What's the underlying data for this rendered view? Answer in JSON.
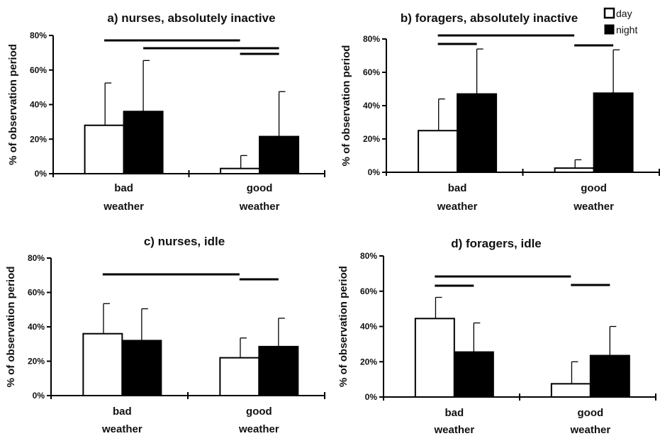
{
  "legend": [
    {
      "label": "day",
      "color": "#ffffff"
    },
    {
      "label": "night",
      "color": "#000000"
    }
  ],
  "chart_data": [
    {
      "type": "bar",
      "title": "a) nurses, absolutely inactive",
      "ylabel": "% of observation period",
      "ylim": [
        0,
        80
      ],
      "yticks": [
        "0%",
        "20%",
        "40%",
        "60%",
        "80%"
      ],
      "categories": [
        [
          "bad",
          "weather"
        ],
        [
          "good",
          "weather"
        ]
      ],
      "series": [
        {
          "name": "day",
          "values": [
            28,
            3
          ],
          "errors": [
            24.5,
            7.5
          ]
        },
        {
          "name": "night",
          "values": [
            36,
            21.5
          ],
          "errors": [
            29.5,
            26
          ]
        }
      ],
      "significance": [
        {
          "from": [
            0,
            0
          ],
          "to": [
            1,
            0
          ]
        },
        {
          "from": [
            0,
            1
          ],
          "to": [
            1,
            1
          ]
        },
        {
          "from": [
            1,
            0
          ],
          "to": [
            1,
            1
          ]
        }
      ]
    },
    {
      "type": "bar",
      "title": "b) foragers, absolutely inactive",
      "ylabel": "% of observation period",
      "ylim": [
        0,
        80
      ],
      "yticks": [
        "0%",
        "20%",
        "40%",
        "60%",
        "80%"
      ],
      "categories": [
        [
          "bad",
          "weather"
        ],
        [
          "good",
          "weather"
        ]
      ],
      "series": [
        {
          "name": "day",
          "values": [
            25,
            2.5
          ],
          "errors": [
            19,
            5
          ]
        },
        {
          "name": "night",
          "values": [
            47,
            47.5
          ],
          "errors": [
            27,
            26
          ]
        }
      ],
      "significance": [
        {
          "from": [
            0,
            0
          ],
          "to": [
            1,
            0
          ]
        },
        {
          "from": [
            0,
            0
          ],
          "to": [
            0,
            1
          ]
        },
        {
          "from": [
            1,
            0
          ],
          "to": [
            1,
            1
          ]
        }
      ]
    },
    {
      "type": "bar",
      "title": "c) nurses, idle",
      "ylabel": "% of observation period",
      "ylim": [
        0,
        80
      ],
      "yticks": [
        "0%",
        "20%",
        "40%",
        "60%",
        "80%"
      ],
      "categories": [
        [
          "bad",
          "weather"
        ],
        [
          "good",
          "weather"
        ]
      ],
      "series": [
        {
          "name": "day",
          "values": [
            36,
            22
          ],
          "errors": [
            17.5,
            11.5
          ]
        },
        {
          "name": "night",
          "values": [
            32,
            28.5
          ],
          "errors": [
            18.5,
            16.5
          ]
        }
      ],
      "significance": [
        {
          "from": [
            0,
            0
          ],
          "to": [
            1,
            0
          ]
        },
        {
          "from": [
            1,
            0
          ],
          "to": [
            1,
            1
          ]
        }
      ]
    },
    {
      "type": "bar",
      "title": "d) foragers, idle",
      "ylabel": "% of observation period",
      "ylim": [
        0,
        80
      ],
      "yticks": [
        "0%",
        "20%",
        "40%",
        "60%",
        "80%"
      ],
      "categories": [
        [
          "bad",
          "weather"
        ],
        [
          "good",
          "weather"
        ]
      ],
      "series": [
        {
          "name": "day",
          "values": [
            44.5,
            7.5
          ],
          "errors": [
            12,
            12.5
          ]
        },
        {
          "name": "night",
          "values": [
            25.5,
            23.5
          ],
          "errors": [
            16.5,
            16.5
          ]
        }
      ],
      "significance": [
        {
          "from": [
            0,
            0
          ],
          "to": [
            1,
            0
          ]
        },
        {
          "from": [
            0,
            0
          ],
          "to": [
            0,
            1
          ]
        },
        {
          "from": [
            1,
            0
          ],
          "to": [
            1,
            1
          ]
        }
      ]
    }
  ]
}
